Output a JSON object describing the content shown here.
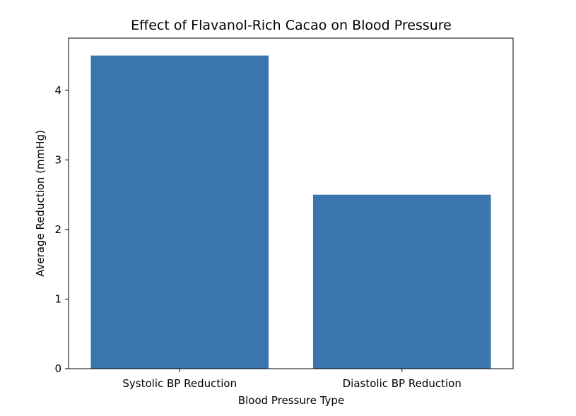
{
  "chart_data": {
    "type": "bar",
    "title": "Effect of Flavanol-Rich Cacao on Blood Pressure",
    "xlabel": "Blood Pressure Type",
    "ylabel": "Average Reduction (mmHg)",
    "categories": [
      "Systolic BP Reduction",
      "Diastolic BP Reduction"
    ],
    "values": [
      4.5,
      2.5
    ],
    "ylim": [
      0,
      4.75
    ],
    "yticks": [
      0,
      1,
      2,
      3,
      4
    ],
    "grid": false,
    "legend": "none",
    "bar_color": "#3a75ad"
  }
}
